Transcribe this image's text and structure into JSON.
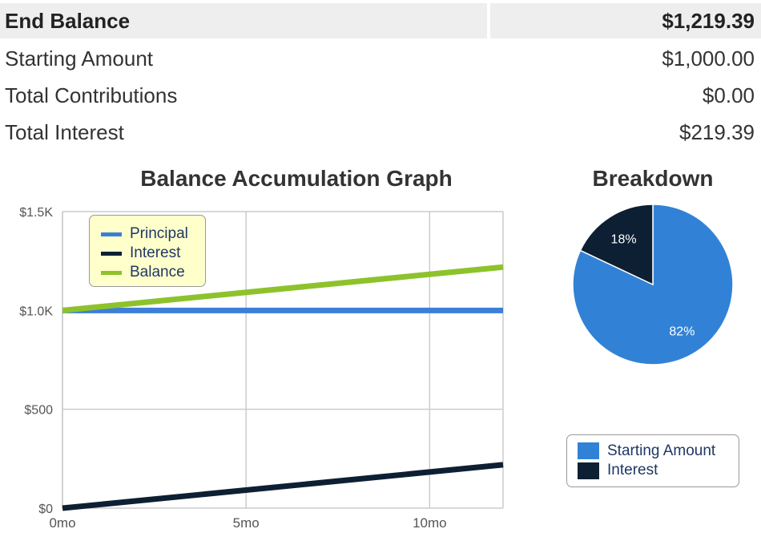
{
  "summary": {
    "end_balance_label": "End Balance",
    "end_balance_value": "$1,219.39",
    "rows": [
      {
        "label": "Starting Amount",
        "value": "$1,000.00"
      },
      {
        "label": "Total Contributions",
        "value": "$0.00"
      },
      {
        "label": "Total Interest",
        "value": "$219.39"
      }
    ]
  },
  "chart_data": [
    {
      "type": "line",
      "title": "Balance Accumulation Graph",
      "x": [
        0,
        12
      ],
      "x_ticks": [
        0,
        5,
        10
      ],
      "x_tick_labels": [
        "0mo",
        "5mo",
        "10mo"
      ],
      "xlim": [
        0,
        12
      ],
      "y_ticks": [
        0,
        500,
        1000,
        1500
      ],
      "y_tick_labels": [
        "$0",
        "$500",
        "$1.0K",
        "$1.5K"
      ],
      "ylim": [
        0,
        1500
      ],
      "grid": true,
      "legend_position": "top-left",
      "series": [
        {
          "name": "Principal",
          "values": [
            1000,
            1000
          ],
          "color": "#3b7fd8"
        },
        {
          "name": "Interest",
          "values": [
            0,
            219.39
          ],
          "color": "#0d1f33"
        },
        {
          "name": "Balance",
          "values": [
            1000,
            1219.39
          ],
          "color": "#8ec22c"
        }
      ]
    },
    {
      "type": "pie",
      "title": "Breakdown",
      "categories": [
        "Starting Amount",
        "Interest"
      ],
      "values": [
        82,
        18
      ],
      "value_labels": [
        "82%",
        "18%"
      ],
      "colors": [
        "#3182d6",
        "#0d1f33"
      ],
      "legend_position": "bottom"
    }
  ]
}
